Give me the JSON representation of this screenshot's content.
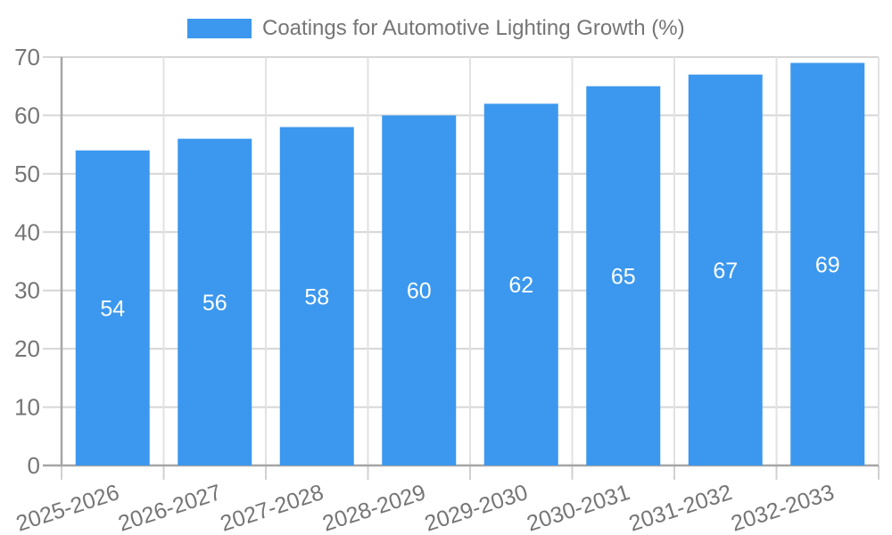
{
  "chart_data": {
    "type": "bar",
    "title": "Coatings for Automotive Lighting Growth (%)",
    "legend": {
      "position": "top",
      "label": "Coatings for Automotive Lighting Growth (%)"
    },
    "categories": [
      "2025-2026",
      "2026-2027",
      "2027-2028",
      "2028-2029",
      "2029-2030",
      "2030-2031",
      "2031-2032",
      "2032-2033"
    ],
    "values": [
      54,
      56,
      58,
      60,
      62,
      65,
      67,
      69
    ],
    "value_labels": [
      "54",
      "56",
      "58",
      "60",
      "62",
      "65",
      "67",
      "69"
    ],
    "xlabel": "",
    "ylabel": "",
    "ylim": [
      0,
      70
    ],
    "yticks": [
      0,
      10,
      20,
      30,
      40,
      50,
      60,
      70
    ],
    "grid": true,
    "colors": {
      "bar": "#3c98ee",
      "value_label": "#ffffff",
      "axis_text": "#757575",
      "axis_line": "#a6a6a6",
      "gridline_h": "#d6d6d6",
      "gridline_v": "#e2e2e2",
      "tick": "#d0d0d0"
    }
  }
}
